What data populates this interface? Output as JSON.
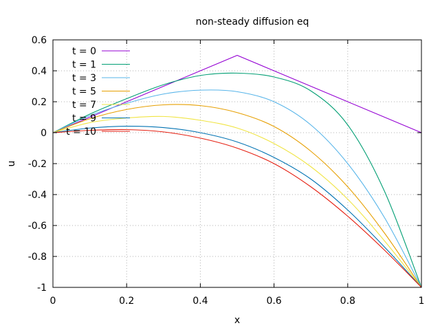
{
  "chart_data": {
    "type": "line",
    "title": "non-steady diffusion eq",
    "xlabel": "x",
    "ylabel": "u",
    "xlim": [
      0,
      1
    ],
    "ylim": [
      -1,
      0.6
    ],
    "xticks": [
      "0",
      "0.2",
      "0.4",
      "0.6",
      "0.8",
      "1"
    ],
    "yticks": [
      "-1",
      "-0.8",
      "-0.6",
      "-0.4",
      "-0.2",
      "0",
      "0.2",
      "0.4",
      "0.6"
    ],
    "grid": true,
    "legend_position": "top-left",
    "x": [
      0,
      0.1,
      0.2,
      0.3,
      0.4,
      0.5,
      0.6,
      0.7,
      0.8,
      0.9,
      1
    ],
    "series": [
      {
        "name": "t = 0",
        "color": "#9400d3",
        "values": [
          0,
          0.1,
          0.2,
          0.3,
          0.4,
          0.5,
          0.4,
          0.3,
          0.2,
          0.1,
          0
        ]
      },
      {
        "name": "t = 1",
        "color": "#009e73",
        "values": [
          0,
          0.12,
          0.22,
          0.31,
          0.37,
          0.385,
          0.36,
          0.27,
          0.05,
          -0.38,
          -1
        ]
      },
      {
        "name": "t = 3",
        "color": "#56b4e9",
        "values": [
          0,
          0.11,
          0.19,
          0.25,
          0.275,
          0.265,
          0.2,
          0.05,
          -0.2,
          -0.55,
          -1
        ]
      },
      {
        "name": "t = 5",
        "color": "#e69f00",
        "values": [
          0,
          0.09,
          0.15,
          0.18,
          0.175,
          0.13,
          0.04,
          -0.12,
          -0.35,
          -0.65,
          -1
        ]
      },
      {
        "name": "t = 7",
        "color": "#f0e442",
        "values": [
          0,
          0.065,
          0.095,
          0.105,
          0.08,
          0.03,
          -0.07,
          -0.22,
          -0.43,
          -0.7,
          -1
        ]
      },
      {
        "name": "t = 9",
        "color": "#0072b2",
        "values": [
          0,
          0.03,
          0.042,
          0.033,
          0.0,
          -0.06,
          -0.16,
          -0.3,
          -0.5,
          -0.74,
          -1
        ]
      },
      {
        "name": "t = 10",
        "color": "#e51e10",
        "values": [
          0,
          0.015,
          0.02,
          0.005,
          -0.035,
          -0.1,
          -0.2,
          -0.35,
          -0.54,
          -0.76,
          -1
        ]
      }
    ]
  }
}
